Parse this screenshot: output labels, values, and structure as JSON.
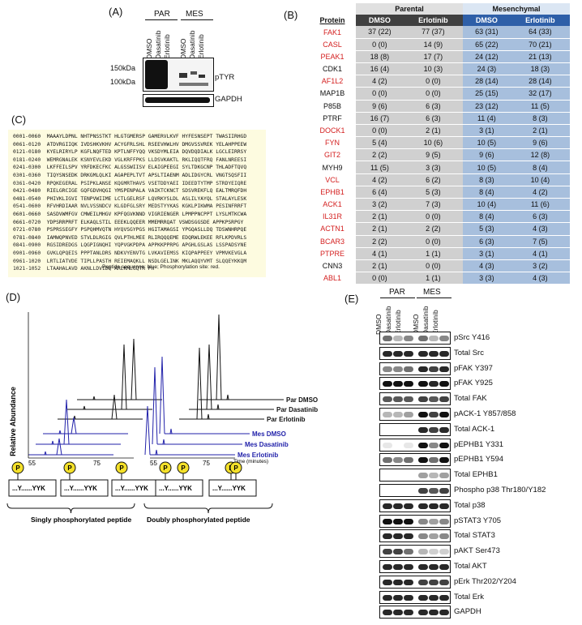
{
  "panels": {
    "A": "(A)",
    "B": "(B)",
    "C": "(C)",
    "D": "(D)",
    "E": "(E)"
  },
  "panelA": {
    "groups": [
      "PAR",
      "MES"
    ],
    "lanes": [
      "DMSO",
      "Dasatinib",
      "Erlotinib",
      "DMSO",
      "Dasatinib",
      "Erlotinib"
    ],
    "markers": [
      "150kDa",
      "100kDa"
    ],
    "blots": [
      "pTYR",
      "GAPDH"
    ]
  },
  "panelB": {
    "header_groups": [
      "Parental",
      "Mesenchymal"
    ],
    "columns": [
      "Protein",
      "DMSO",
      "Erlotinib",
      "DMSO",
      "Erlotinib"
    ],
    "rows": [
      {
        "protein": "FAK1",
        "red": true,
        "v": [
          "37 (22)",
          "77 (37)",
          "63 (31)",
          "64 (33)"
        ]
      },
      {
        "protein": "CASL",
        "red": true,
        "v": [
          "0 (0)",
          "14 (9)",
          "65 (22)",
          "70 (21)"
        ]
      },
      {
        "protein": "PEAK1",
        "red": true,
        "v": [
          "18 (8)",
          "17 (7)",
          "24 (12)",
          "21 (13)"
        ]
      },
      {
        "protein": "CDK1",
        "red": false,
        "v": [
          "16 (4)",
          "10 (3)",
          "24 (3)",
          "18 (3)"
        ]
      },
      {
        "protein": "AF1L2",
        "red": true,
        "v": [
          "4 (2)",
          "0 (0)",
          "28 (14)",
          "28 (14)"
        ]
      },
      {
        "protein": "MAP1B",
        "red": false,
        "v": [
          "0 (0)",
          "0 (0)",
          "25 (15)",
          "32 (17)"
        ]
      },
      {
        "protein": "P85B",
        "red": false,
        "v": [
          "9 (6)",
          "6 (3)",
          "23 (12)",
          "11 (5)"
        ]
      },
      {
        "protein": "PTRF",
        "red": false,
        "v": [
          "16 (7)",
          "6 (3)",
          "11 (4)",
          "8 (3)"
        ]
      },
      {
        "protein": "DOCK1",
        "red": true,
        "v": [
          "0 (0)",
          "2 (1)",
          "3 (1)",
          "2 (1)"
        ]
      },
      {
        "protein": "FYN",
        "red": true,
        "v": [
          "5 (4)",
          "10 (6)",
          "10 (5)",
          "9 (6)"
        ]
      },
      {
        "protein": "GIT2",
        "red": true,
        "v": [
          "2 (2)",
          "9 (5)",
          "9 (6)",
          "12 (8)"
        ]
      },
      {
        "protein": "MYH9",
        "red": false,
        "v": [
          "11 (5)",
          "3 (3)",
          "10 (5)",
          "8 (4)"
        ]
      },
      {
        "protein": "VCL",
        "red": true,
        "v": [
          "4 (2)",
          "6 (2)",
          "8 (3)",
          "10 (4)"
        ]
      },
      {
        "protein": "EPHB1",
        "red": true,
        "v": [
          "6 (4)",
          "5 (3)",
          "8 (4)",
          "4 (2)"
        ]
      },
      {
        "protein": "ACK1",
        "red": true,
        "v": [
          "3 (2)",
          "7 (3)",
          "10 (4)",
          "11 (6)"
        ]
      },
      {
        "protein": "IL31R",
        "red": true,
        "v": [
          "2 (1)",
          "0 (0)",
          "8 (4)",
          "6 (3)"
        ]
      },
      {
        "protein": "ACTN1",
        "red": true,
        "v": [
          "2 (1)",
          "2 (2)",
          "5 (3)",
          "4 (3)"
        ]
      },
      {
        "protein": "BCAR3",
        "red": true,
        "v": [
          "2 (2)",
          "0 (0)",
          "6 (3)",
          "7 (5)"
        ]
      },
      {
        "protein": "PTPRE",
        "red": true,
        "v": [
          "4 (1)",
          "1 (1)",
          "3 (1)",
          "4 (1)"
        ]
      },
      {
        "protein": "CNN3",
        "red": false,
        "v": [
          "2 (1)",
          "0 (0)",
          "4 (3)",
          "3 (2)"
        ]
      },
      {
        "protein": "ABL1",
        "red": true,
        "v": [
          "0 (0)",
          "1 (1)",
          "3 (3)",
          "4 (3)"
        ]
      }
    ]
  },
  "panelC": {
    "lines": [
      "0001-0060  MAAAYLDPNL NHTPNSSTKT HLGTGMERSP GAMERVLKVF HYFESNSEPT TWASIIRHGD",
      "0061-0120  ATDVRGIIQK IVDSHKVKHV ACYGFRLSHL RSEEVHWLHV DMGVSSVREK YELAHPPEEW",
      "0121-0180  KYELRIRYLP KGFLNQFTED KPTLNFFYQQ VKSDYMLEIA DQVDQDIALK LGCLEIRRSY",
      "0181-0240  WEMRGNALEK KSNYEVLEKD VGLKRFFPKS LLDSVKAKTL RKLIQQTFRQ FANLNREESI",
      "0241-0300  LKFFEILSPV YRFDKECFKC ALGSSWIISV ELAIGPEEGI SYLTDKGCNP THLADFTQVQ",
      "0301-0360  TIQYSNSEDK DRKGMLQLKI AGAPEPLTVT APSLTIAENM ADLIDGYCRL VNGTSQSFII",
      "0361-0420  RPQKEGERAL PSIPKLANSE KQGMRTHAVS VSETDDYAEI IDEEDTYTMP STRDYEIQRE",
      "0421-0480  RIELGRCIGE GQFGDVHQGI YMSPENPALA VAIKTCKNCT SDSVREKFLQ EALTMRQFDH",
      "0481-0540  PHIVKLIGVI TENPVWIIME LCTLGELRSF LQVRKYSLDL ASLILYAYQL STALAYLESK",
      "0541-0600  RFVHRDIAAR NVLVSSNDCV KLGDFGLSRY MEDSTYYKAS KGKLPIKWMA PESINFRRFT",
      "0601-0660  SASDVWMFGV CMWEILMHGV KPFQGVKNND VIGRIENGER LPMPPNCPPT LYSLMTKCWA",
      "0661-0720  YDPSRRPRFT ELKAQLSTIL EEEKLQQEER MMEMRRQAT VSWDSGGSDE APPKPSRPGY",
      "0721-0780  PSPRSSEGFY PSPQHMVQTN HYQVSGYPGS HGITAMAGSI YPGQASLLDQ TDSWNHRPQE",
      "0781-0840  IAMWQPNVED STVLDLRGIG QVLPTHLMEE RLIRQQQEME EDQRWLEKEE RFLKPDVRLS",
      "0841-0900  RGSIDREDGS LQGPIGNQHI YQPVGKPDPA APPKKPPRPG APGHLGSLAS LSSPADSYNE",
      "0901-0960  GVKLQPQEIS PPPTANLDRS NDKVYENVTG LVKAVIEMSS KIQPAPPEEY VPMVKEVGLA",
      "0961-1020  LRTLIATVDE TIPLLPASTH REIEMAQKLL NSDLGELINK MKLAQQYVMT SLQQEYKKQM",
      "1021-1052  LTAAHALAVD AKNLLDVIDQ ARLKMLGQTR PH"
    ],
    "caption": "Peptide sequence: blue; Phosphorylation site: red."
  },
  "panelD": {
    "yaxis": "Relative Abundance",
    "xticks_left": [
      "55",
      "75"
    ],
    "xticks_right": [
      "55",
      "75"
    ],
    "xunit": "Time (minutes)",
    "traces": [
      {
        "name": "Par DMSO",
        "color": "#111111"
      },
      {
        "name": "Par Dasatinib",
        "color": "#111111"
      },
      {
        "name": "Par Erlotinib",
        "color": "#111111"
      },
      {
        "name": "Mes DMSO",
        "color": "#2222aa"
      },
      {
        "name": "Mes Dasatinib",
        "color": "#2222aa"
      },
      {
        "name": "Mes Erlotinib",
        "color": "#2222aa"
      }
    ],
    "peptides": [
      "...Y......YYK",
      "...Y......YYK",
      "...Y......YYK",
      "...Y......YYK",
      "...Y......YYK"
    ],
    "p_symbol": "P",
    "captions": [
      "Singly phosphorylated peptide",
      "Doubly phosphorylated peptide"
    ]
  },
  "panelE": {
    "groups": [
      "PAR",
      "MES"
    ],
    "lanes": [
      "DMSO",
      "Dasatinib",
      "Erlotinib",
      "DMSO",
      "Dasatinib",
      "Erlotinib"
    ],
    "blots": [
      {
        "label": "pSrc Y416",
        "bands": [
          0.6,
          0.3,
          0.5,
          0.6,
          0.3,
          0.5
        ]
      },
      {
        "label": "Total Src",
        "bands": [
          0.9,
          0.9,
          0.9,
          0.9,
          0.9,
          0.9
        ]
      },
      {
        "label": "pFAK Y397",
        "bands": [
          0.5,
          0.5,
          0.6,
          0.9,
          0.8,
          0.9
        ]
      },
      {
        "label": "pFAK Y925",
        "bands": [
          1,
          1,
          1,
          1,
          0.9,
          1
        ]
      },
      {
        "label": "Total FAK",
        "bands": [
          0.7,
          0.7,
          0.7,
          0.8,
          0.7,
          0.8
        ]
      },
      {
        "label": "pACK-1 Y857/858",
        "bands": [
          0.3,
          0.3,
          0.4,
          1,
          0.8,
          1
        ]
      },
      {
        "label": "Total ACK-1",
        "bands": [
          0,
          0,
          0,
          0.9,
          0.8,
          0.9
        ]
      },
      {
        "label": "pEPHB1 Y331",
        "bands": [
          0.1,
          0,
          0.1,
          1,
          0.5,
          1
        ]
      },
      {
        "label": "pEPHB1 Y594",
        "bands": [
          0.6,
          0.5,
          0.6,
          1,
          0.6,
          1
        ]
      },
      {
        "label": "Total EPHB1",
        "bands": [
          0,
          0,
          0,
          0.4,
          0.3,
          0.4
        ]
      },
      {
        "label": "Phospho p38 Thr180/Y182",
        "bands": [
          0,
          0,
          0,
          0.8,
          0.7,
          0.8
        ]
      },
      {
        "label": "Total p38",
        "bands": [
          0.9,
          0.9,
          0.9,
          0.9,
          0.9,
          0.9
        ]
      },
      {
        "label": "pSTAT3 Y705",
        "bands": [
          1,
          1,
          1,
          0.5,
          0.4,
          0.5
        ]
      },
      {
        "label": "Total STAT3",
        "bands": [
          0.9,
          0.9,
          0.9,
          0.5,
          0.4,
          0.5
        ]
      },
      {
        "label": "pAKT Ser473",
        "bands": [
          0.8,
          0.8,
          0.6,
          0.3,
          0.2,
          0.2
        ]
      },
      {
        "label": "Total AKT",
        "bands": [
          0.9,
          0.9,
          0.9,
          0.9,
          0.9,
          0.9
        ]
      },
      {
        "label": "pErk Thr202/Y204",
        "bands": [
          0.9,
          0.9,
          0.9,
          0.8,
          0.8,
          0.8
        ]
      },
      {
        "label": "Total Erk",
        "bands": [
          0.9,
          0.9,
          0.9,
          0.9,
          0.9,
          0.9
        ]
      },
      {
        "label": "GAPDH",
        "bands": [
          0.9,
          0.9,
          0.9,
          0.9,
          0.9,
          0.9
        ]
      }
    ]
  },
  "colors": {
    "red": "#d42020",
    "headGray": "#404040",
    "headBlue": "#2e5fa8",
    "cellGray": "#d0d0d0",
    "cellBlue": "#a7bfdd",
    "blueTrace": "#2222aa",
    "seqBlue": "#1a8fd6"
  }
}
